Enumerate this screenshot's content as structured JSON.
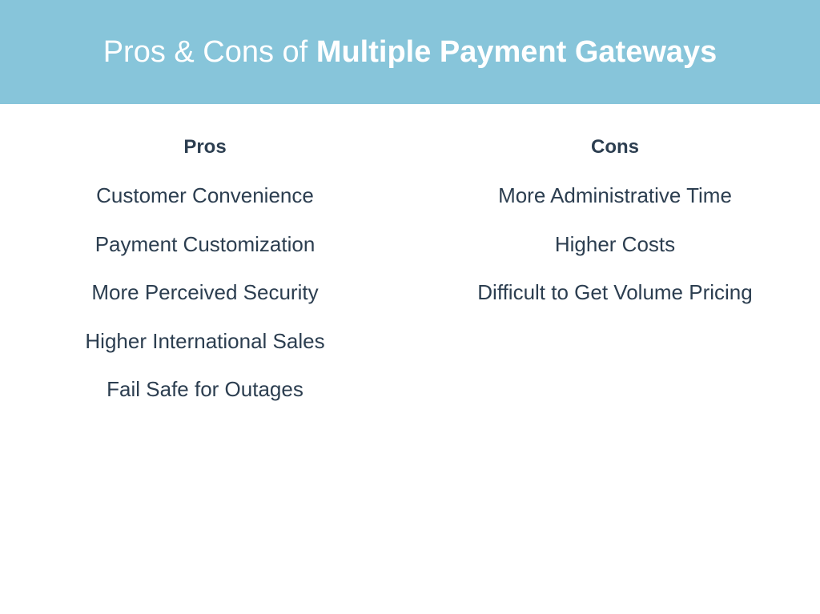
{
  "colors": {
    "header_bg": "#87c5da",
    "header_text": "#ffffff",
    "body_text": "#2c3e50",
    "page_bg": "#ffffff"
  },
  "header": {
    "prefix": "Pros & Cons of ",
    "bold": "Multiple Payment Gateways"
  },
  "pros": {
    "title": "Pros",
    "items": [
      "Customer Convenience",
      "Payment Customization",
      "More Perceived Security",
      "Higher International Sales",
      "Fail Safe for Outages"
    ]
  },
  "cons": {
    "title": "Cons",
    "items": [
      "More Administrative Time",
      "Higher Costs",
      "Difficult to Get Volume Pricing"
    ]
  },
  "typography": {
    "header_fontsize": 38,
    "column_header_fontsize": 24,
    "item_fontsize": 26
  }
}
